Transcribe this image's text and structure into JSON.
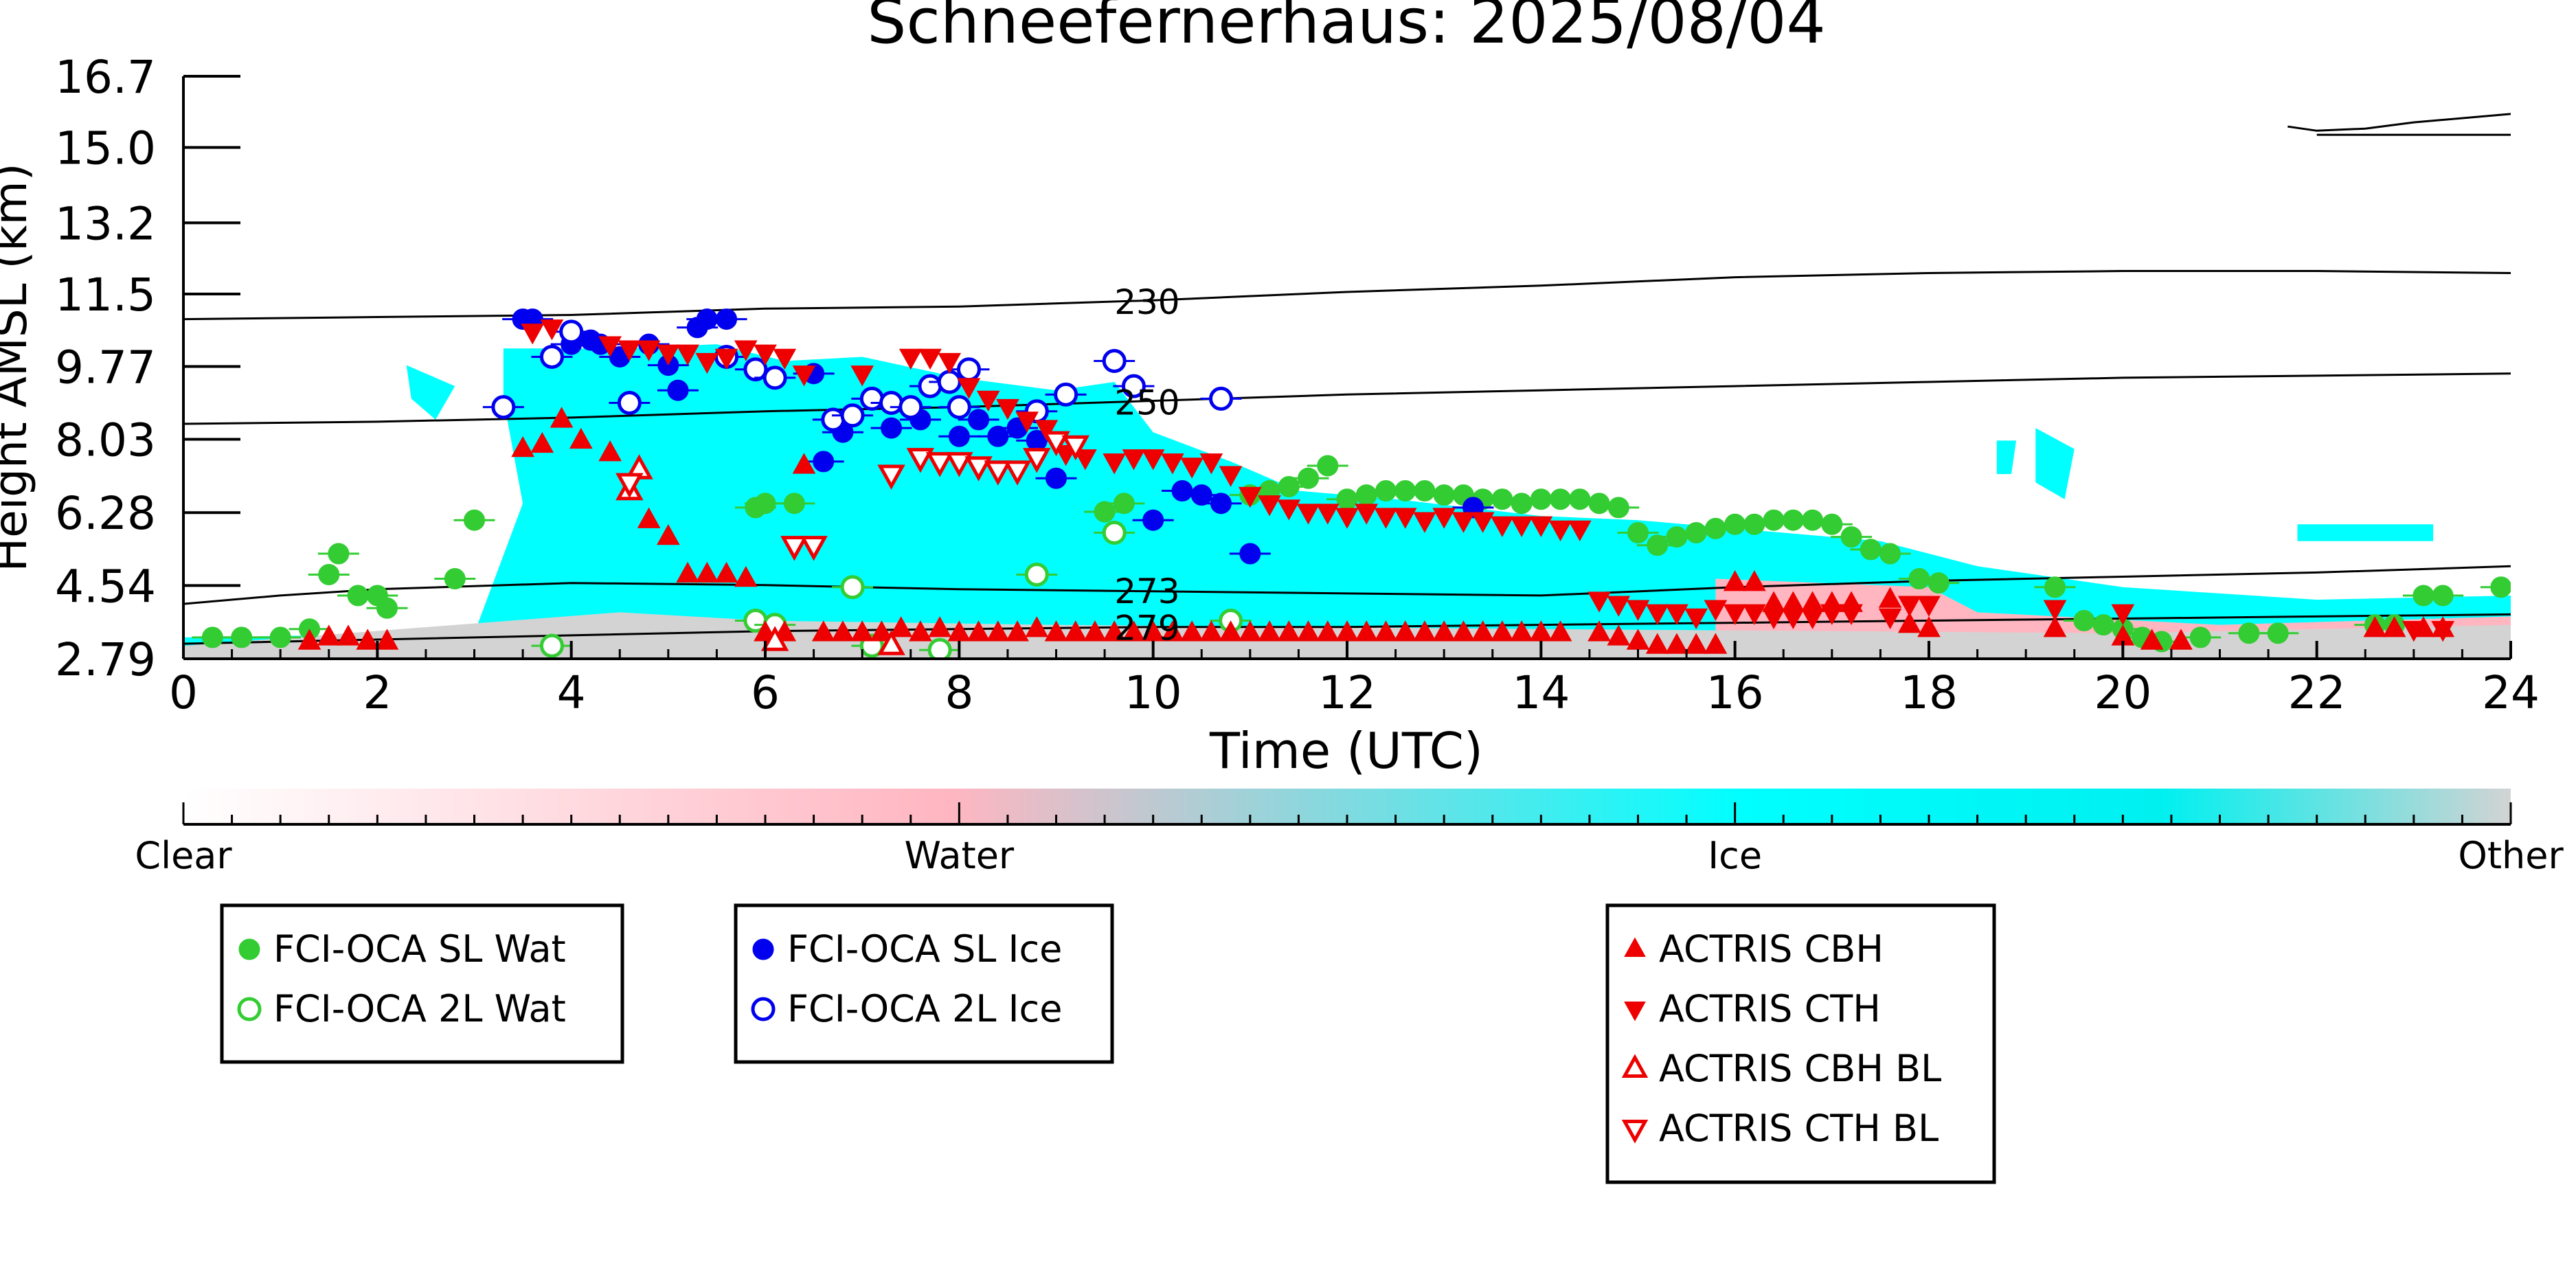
{
  "chart_data": {
    "type": "scatter",
    "title": "Schneefernerhaus: 2025/08/04",
    "xlabel": "Time (UTC)",
    "ylabel": "Height AMSL (km)",
    "xlim": [
      0,
      24
    ],
    "ylim": [
      2.79,
      16.7
    ],
    "x_ticks": [
      0,
      2,
      4,
      6,
      8,
      10,
      12,
      14,
      16,
      18,
      20,
      22,
      24
    ],
    "y_ticks": [
      2.79,
      4.54,
      6.28,
      8.03,
      9.77,
      11.5,
      13.2,
      15.0,
      16.7
    ],
    "y_tick_labels": [
      "2.79",
      "4.54",
      "6.28",
      "8.03",
      "9.77",
      "11.5",
      "13.2",
      "15.0",
      "16.7"
    ],
    "grid": false,
    "colorbar": {
      "labels": [
        "Clear",
        "Water",
        "Ice",
        "Other"
      ],
      "colors": [
        "#ffffff",
        "#ffb6c1",
        "#00ffff",
        "#d3d3d3"
      ]
    },
    "contours": [
      {
        "label": "230",
        "label_x": 9.6,
        "points": [
          [
            0,
            10.9
          ],
          [
            2,
            10.95
          ],
          [
            4,
            11.0
          ],
          [
            6,
            11.15
          ],
          [
            8,
            11.2
          ],
          [
            10,
            11.35
          ],
          [
            12,
            11.55
          ],
          [
            14,
            11.7
          ],
          [
            16,
            11.9
          ],
          [
            18,
            12.0
          ],
          [
            20,
            12.05
          ],
          [
            22,
            12.05
          ],
          [
            24,
            12.0
          ]
        ]
      },
      {
        "label": "250",
        "label_x": 9.6,
        "points": [
          [
            0,
            8.4
          ],
          [
            2,
            8.45
          ],
          [
            4,
            8.55
          ],
          [
            6,
            8.7
          ],
          [
            8,
            8.8
          ],
          [
            10,
            8.95
          ],
          [
            12,
            9.1
          ],
          [
            14,
            9.2
          ],
          [
            16,
            9.3
          ],
          [
            18,
            9.4
          ],
          [
            20,
            9.5
          ],
          [
            22,
            9.55
          ],
          [
            24,
            9.6
          ]
        ]
      },
      {
        "label": "273",
        "label_x": 9.6,
        "points": [
          [
            0,
            4.1
          ],
          [
            1,
            4.3
          ],
          [
            2,
            4.45
          ],
          [
            4,
            4.6
          ],
          [
            6,
            4.55
          ],
          [
            8,
            4.45
          ],
          [
            10,
            4.4
          ],
          [
            12,
            4.35
          ],
          [
            14,
            4.3
          ],
          [
            16,
            4.5
          ],
          [
            18,
            4.65
          ],
          [
            20,
            4.75
          ],
          [
            22,
            4.85
          ],
          [
            24,
            5.0
          ]
        ]
      },
      {
        "label": "279",
        "label_x": 9.6,
        "points": [
          [
            0,
            3.15
          ],
          [
            2,
            3.25
          ],
          [
            4,
            3.35
          ],
          [
            6,
            3.45
          ],
          [
            8,
            3.5
          ],
          [
            10,
            3.55
          ],
          [
            12,
            3.55
          ],
          [
            14,
            3.6
          ],
          [
            16,
            3.65
          ],
          [
            18,
            3.7
          ],
          [
            20,
            3.75
          ],
          [
            22,
            3.8
          ],
          [
            24,
            3.85
          ]
        ]
      },
      {
        "label": "",
        "label_x": 0,
        "points": [
          [
            21.7,
            15.5
          ],
          [
            22,
            15.4
          ],
          [
            22.5,
            15.45
          ],
          [
            23,
            15.6
          ],
          [
            24,
            15.8
          ]
        ]
      },
      {
        "label": "",
        "label_x": 0,
        "points": [
          [
            22,
            15.3
          ],
          [
            23,
            15.3
          ],
          [
            24,
            15.3
          ]
        ]
      }
    ],
    "cloud_mask_regions": [
      {
        "class": "Ice",
        "points": [
          [
            3.3,
            10.2
          ],
          [
            4.5,
            10.2
          ],
          [
            5.5,
            10.3
          ],
          [
            6.2,
            9.9
          ],
          [
            7,
            10.0
          ],
          [
            8,
            9.5
          ],
          [
            9,
            9.2
          ],
          [
            9.6,
            9.4
          ],
          [
            10,
            8.2
          ],
          [
            10.8,
            7.5
          ],
          [
            11.5,
            6.8
          ],
          [
            12.5,
            6.6
          ],
          [
            14,
            6.2
          ],
          [
            15,
            6.1
          ],
          [
            16,
            5.9
          ],
          [
            17.5,
            5.6
          ],
          [
            18.5,
            5.0
          ],
          [
            20,
            4.5
          ],
          [
            22,
            4.2
          ],
          [
            24,
            4.3
          ],
          [
            24,
            3.0
          ],
          [
            0,
            3.0
          ],
          [
            0,
            3.3
          ],
          [
            3,
            3.4
          ],
          [
            3.5,
            6.5
          ],
          [
            3.3,
            9.0
          ]
        ]
      },
      {
        "class": "Ice",
        "points": [
          [
            18.7,
            8.0
          ],
          [
            18.9,
            8.0
          ],
          [
            18.85,
            7.2
          ],
          [
            18.7,
            7.2
          ]
        ]
      },
      {
        "class": "Ice",
        "points": [
          [
            19.1,
            8.3
          ],
          [
            19.5,
            7.8
          ],
          [
            19.4,
            6.6
          ],
          [
            19.1,
            7.0
          ]
        ]
      },
      {
        "class": "Ice",
        "points": [
          [
            2.3,
            9.8
          ],
          [
            2.8,
            9.3
          ],
          [
            2.6,
            8.5
          ],
          [
            2.35,
            9.0
          ]
        ]
      },
      {
        "class": "Ice",
        "points": [
          [
            21.8,
            6.0
          ],
          [
            23.2,
            6.0
          ],
          [
            23.2,
            5.6
          ],
          [
            21.8,
            5.6
          ]
        ]
      },
      {
        "class": "Water",
        "points": [
          [
            15.8,
            4.7
          ],
          [
            18,
            4.5
          ],
          [
            18.5,
            3.9
          ],
          [
            21,
            3.6
          ],
          [
            24,
            3.8
          ],
          [
            24,
            3.1
          ],
          [
            15.8,
            3.2
          ]
        ]
      },
      {
        "class": "Other",
        "points": [
          [
            4.5,
            3.9
          ],
          [
            6,
            3.7
          ],
          [
            9,
            3.6
          ],
          [
            14,
            3.5
          ],
          [
            20,
            3.4
          ],
          [
            24,
            3.6
          ],
          [
            24,
            2.79
          ],
          [
            0,
            2.79
          ],
          [
            0,
            3.1
          ]
        ]
      }
    ],
    "series": [
      {
        "name": "FCI-OCA SL Wat",
        "marker": "circle",
        "filled": true,
        "color": "#33cc33",
        "x": [
          0.3,
          0.6,
          1.0,
          1.3,
          1.5,
          1.6,
          1.8,
          2.0,
          2.1,
          2.8,
          3.0,
          5.9,
          6.0,
          6.3,
          9.5,
          9.7,
          11.0,
          11.2,
          11.4,
          11.6,
          11.8,
          12.0,
          12.2,
          12.4,
          12.6,
          12.8,
          13.0,
          13.2,
          13.4,
          13.6,
          13.8,
          14.0,
          14.2,
          14.4,
          14.6,
          14.8,
          15.0,
          15.2,
          15.4,
          15.6,
          15.8,
          16.0,
          16.2,
          16.4,
          16.6,
          16.8,
          17.0,
          17.2,
          17.4,
          17.6,
          17.9,
          18.1,
          19.3,
          19.6,
          19.8,
          20.0,
          20.2,
          20.4,
          20.8,
          21.3,
          21.6,
          22.6,
          22.8,
          23.1,
          23.3,
          23.9
        ],
        "y": [
          3.3,
          3.3,
          3.3,
          3.5,
          4.8,
          5.3,
          4.3,
          4.3,
          4.0,
          4.7,
          6.1,
          6.4,
          6.5,
          6.5,
          6.3,
          6.5,
          6.7,
          6.8,
          6.9,
          7.1,
          7.4,
          6.6,
          6.7,
          6.8,
          6.8,
          6.8,
          6.7,
          6.7,
          6.6,
          6.6,
          6.5,
          6.6,
          6.6,
          6.6,
          6.5,
          6.4,
          5.8,
          5.5,
          5.7,
          5.8,
          5.9,
          6.0,
          6.0,
          6.1,
          6.1,
          6.1,
          6.0,
          5.7,
          5.4,
          5.3,
          4.7,
          4.6,
          4.5,
          3.7,
          3.6,
          3.5,
          3.3,
          3.2,
          3.3,
          3.4,
          3.4,
          3.6,
          3.6,
          4.3,
          4.3,
          4.5
        ]
      },
      {
        "name": "FCI-OCA 2L Wat",
        "marker": "circle",
        "filled": false,
        "color": "#33cc33",
        "x": [
          3.8,
          5.9,
          6.1,
          6.9,
          7.1,
          7.8,
          8.8,
          9.6,
          10.8
        ],
        "y": [
          3.1,
          3.7,
          3.6,
          4.5,
          3.1,
          3.0,
          4.8,
          5.8,
          3.7
        ]
      },
      {
        "name": "FCI-OCA SL Ice",
        "marker": "circle",
        "filled": true,
        "color": "#0000ee",
        "x": [
          3.5,
          3.6,
          4.0,
          4.2,
          4.3,
          4.5,
          4.8,
          5.0,
          5.1,
          5.3,
          5.4,
          5.6,
          6.5,
          6.6,
          6.8,
          7.3,
          7.6,
          8.0,
          8.2,
          8.4,
          8.6,
          8.8,
          9.0,
          10.0,
          10.3,
          10.5,
          10.7,
          11.0,
          13.3
        ],
        "y": [
          10.9,
          10.9,
          10.3,
          10.4,
          10.3,
          10.0,
          10.3,
          9.8,
          9.2,
          10.7,
          10.9,
          10.9,
          9.6,
          7.5,
          8.2,
          8.3,
          8.5,
          8.1,
          8.5,
          8.1,
          8.3,
          8.0,
          7.1,
          6.1,
          6.8,
          6.7,
          6.5,
          5.3,
          6.4
        ]
      },
      {
        "name": "FCI-OCA 2L Ice",
        "marker": "circle",
        "filled": false,
        "color": "#0000ee",
        "x": [
          3.3,
          3.8,
          4.0,
          4.6,
          5.6,
          5.9,
          6.1,
          6.7,
          6.9,
          7.1,
          7.3,
          7.5,
          7.7,
          7.9,
          8.0,
          8.1,
          8.8,
          9.1,
          9.6,
          9.8,
          10.7
        ],
        "y": [
          8.8,
          10.0,
          10.6,
          8.9,
          10.0,
          9.7,
          9.5,
          8.5,
          8.6,
          9.0,
          8.9,
          8.8,
          9.3,
          9.4,
          8.8,
          9.7,
          8.7,
          9.1,
          9.9,
          9.3,
          9.0
        ]
      },
      {
        "name": "ACTRIS CBH",
        "marker": "triangle-up",
        "filled": true,
        "color": "#ee0000",
        "x": [
          1.3,
          1.5,
          1.7,
          1.9,
          2.1,
          3.5,
          3.7,
          3.9,
          4.1,
          4.4,
          4.8,
          5.0,
          5.2,
          5.4,
          5.6,
          5.8,
          6.0,
          6.2,
          6.4,
          6.6,
          6.8,
          7.0,
          7.2,
          7.4,
          7.6,
          7.8,
          8.0,
          8.2,
          8.4,
          8.6,
          8.8,
          9.0,
          9.2,
          9.4,
          9.6,
          9.8,
          10.0,
          10.2,
          10.4,
          10.6,
          10.8,
          11.0,
          11.2,
          11.4,
          11.6,
          11.8,
          12.0,
          12.2,
          12.4,
          12.6,
          12.8,
          13.0,
          13.2,
          13.4,
          13.6,
          13.8,
          14.0,
          14.2,
          14.6,
          14.8,
          15.0,
          15.2,
          15.4,
          15.6,
          15.8,
          16.0,
          16.2,
          16.4,
          16.6,
          16.8,
          17.0,
          17.2,
          17.6,
          17.8,
          18.0,
          19.3,
          20.0,
          20.3,
          20.6,
          22.6,
          22.8,
          23.1,
          23.3
        ],
        "y": [
          3.2,
          3.3,
          3.3,
          3.2,
          3.2,
          7.8,
          7.9,
          8.5,
          8.0,
          7.7,
          6.1,
          5.7,
          4.8,
          4.8,
          4.8,
          4.7,
          3.4,
          3.4,
          7.4,
          3.4,
          3.4,
          3.4,
          3.4,
          3.5,
          3.4,
          3.5,
          3.4,
          3.4,
          3.4,
          3.4,
          3.5,
          3.4,
          3.4,
          3.4,
          3.4,
          3.4,
          3.4,
          3.4,
          3.4,
          3.4,
          3.4,
          3.4,
          3.4,
          3.4,
          3.4,
          3.4,
          3.4,
          3.4,
          3.4,
          3.4,
          3.4,
          3.4,
          3.4,
          3.4,
          3.4,
          3.4,
          3.4,
          3.4,
          3.4,
          3.3,
          3.2,
          3.1,
          3.1,
          3.1,
          3.1,
          4.6,
          4.6,
          4.1,
          4.1,
          4.1,
          4.1,
          4.1,
          4.2,
          3.6,
          3.5,
          3.5,
          3.3,
          3.2,
          3.2,
          3.5,
          3.5,
          3.5,
          3.5
        ]
      },
      {
        "name": "ACTRIS CTH",
        "marker": "triangle-down",
        "filled": true,
        "color": "#ee0000",
        "x": [
          3.6,
          3.8,
          4.4,
          4.6,
          4.8,
          5.0,
          5.2,
          5.4,
          5.6,
          5.8,
          6.0,
          6.2,
          6.4,
          7.0,
          7.5,
          7.7,
          7.9,
          8.1,
          8.3,
          8.5,
          8.7,
          8.9,
          9.1,
          9.3,
          9.6,
          9.8,
          10.0,
          10.2,
          10.4,
          10.6,
          10.8,
          11.0,
          11.2,
          11.4,
          11.6,
          11.8,
          12.0,
          12.2,
          12.4,
          12.6,
          12.8,
          13.0,
          13.2,
          13.4,
          13.6,
          13.8,
          14.0,
          14.2,
          14.4,
          14.6,
          14.8,
          15.0,
          15.2,
          15.4,
          15.6,
          15.8,
          16.0,
          16.2,
          16.4,
          16.6,
          16.8,
          17.0,
          17.2,
          17.6,
          17.8,
          18.0,
          19.3,
          20.0,
          23.0,
          23.3
        ],
        "y": [
          10.6,
          10.7,
          10.3,
          10.2,
          10.2,
          10.1,
          10.1,
          9.9,
          10.0,
          10.2,
          10.1,
          10.0,
          9.6,
          9.6,
          10.0,
          10.0,
          9.9,
          9.3,
          9.0,
          8.8,
          8.5,
          8.3,
          7.7,
          7.6,
          7.5,
          7.6,
          7.6,
          7.5,
          7.4,
          7.5,
          7.2,
          6.7,
          6.5,
          6.4,
          6.3,
          6.3,
          6.2,
          6.3,
          6.2,
          6.2,
          6.1,
          6.2,
          6.1,
          6.1,
          6.0,
          6.0,
          6.0,
          5.9,
          5.9,
          4.2,
          4.1,
          4.0,
          3.9,
          3.9,
          3.8,
          4.0,
          3.9,
          3.9,
          3.8,
          3.8,
          3.8,
          3.9,
          3.9,
          3.8,
          4.1,
          4.1,
          4.0,
          3.9,
          3.5,
          3.5
        ]
      },
      {
        "name": "ACTRIS CBH BL",
        "marker": "triangle-up",
        "filled": false,
        "color": "#ee0000",
        "x": [
          4.6,
          4.7,
          6.1,
          7.3
        ],
        "y": [
          6.8,
          7.3,
          3.2,
          3.1
        ]
      },
      {
        "name": "ACTRIS CTH BL",
        "marker": "triangle-down",
        "filled": false,
        "color": "#ee0000",
        "x": [
          4.6,
          6.3,
          6.5,
          7.3,
          7.6,
          7.8,
          8.0,
          8.2,
          8.4,
          8.6,
          8.8,
          9.0,
          9.2
        ],
        "y": [
          7.0,
          5.5,
          5.5,
          7.2,
          7.6,
          7.5,
          7.5,
          7.4,
          7.3,
          7.3,
          7.6,
          8.0,
          7.9
        ]
      }
    ],
    "legend": [
      {
        "entries": [
          "FCI-OCA SL Wat",
          "FCI-OCA 2L Wat"
        ]
      },
      {
        "entries": [
          "FCI-OCA SL Ice",
          "FCI-OCA 2L Ice"
        ]
      },
      {
        "entries": [
          "ACTRIS CBH",
          "ACTRIS CTH",
          "ACTRIS CBH BL",
          "ACTRIS CTH BL"
        ]
      }
    ]
  }
}
